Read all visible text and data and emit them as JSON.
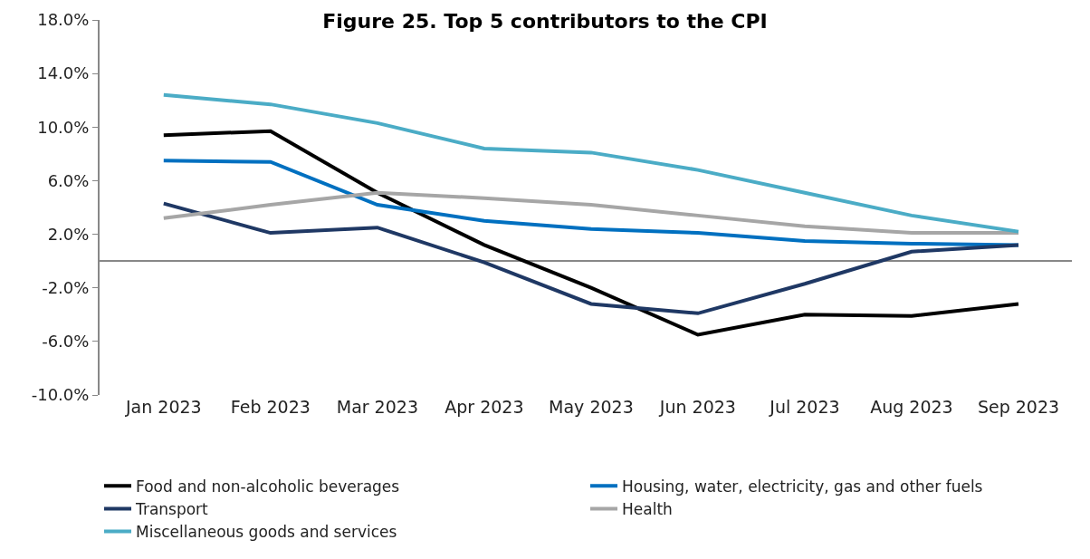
{
  "chart_data": {
    "type": "line",
    "title": "Figure 25. Top 5 contributors to the CPI",
    "categories": [
      "Jan 2023",
      "Feb 2023",
      "Mar 2023",
      "Apr 2023",
      "May 2023",
      "Jun 2023",
      "Jul 2023",
      "Aug 2023",
      "Sep 2023"
    ],
    "series": [
      {
        "name": "Food and non-alcoholic beverages",
        "color": "#000000",
        "values": [
          9.4,
          9.7,
          5.1,
          1.2,
          -2.0,
          -5.5,
          -4.0,
          -4.1,
          -3.2
        ]
      },
      {
        "name": "Housing, water, electricity, gas and other fuels",
        "color": "#0070c0",
        "values": [
          7.5,
          7.4,
          4.2,
          3.0,
          2.4,
          2.1,
          1.5,
          1.3,
          1.2
        ]
      },
      {
        "name": "Transport",
        "color": "#1f3864",
        "values": [
          4.3,
          2.1,
          2.5,
          -0.1,
          -3.2,
          -3.9,
          -1.7,
          0.7,
          1.2
        ]
      },
      {
        "name": "Health",
        "color": "#a6a6a6",
        "values": [
          3.2,
          4.2,
          5.1,
          4.7,
          4.2,
          3.4,
          2.6,
          2.1,
          2.1
        ]
      },
      {
        "name": "Miscellaneous goods and services",
        "color": "#4bacc6",
        "values": [
          12.4,
          11.7,
          10.3,
          8.4,
          8.1,
          6.8,
          5.1,
          3.4,
          2.2
        ]
      }
    ],
    "ylim": [
      -10,
      18
    ],
    "yticks": [
      {
        "value": 18,
        "label": "18.0%"
      },
      {
        "value": 14,
        "label": "14.0%"
      },
      {
        "value": 10,
        "label": "10.0%"
      },
      {
        "value": 6,
        "label": "6.0%"
      },
      {
        "value": 2,
        "label": "2.0%"
      },
      {
        "value": -2,
        "label": "-2.0%"
      },
      {
        "value": -6,
        "label": "-6.0%"
      },
      {
        "value": -10,
        "label": "-10.0%"
      }
    ],
    "legend": "bottom",
    "marker": "none",
    "line_style": "solid"
  }
}
